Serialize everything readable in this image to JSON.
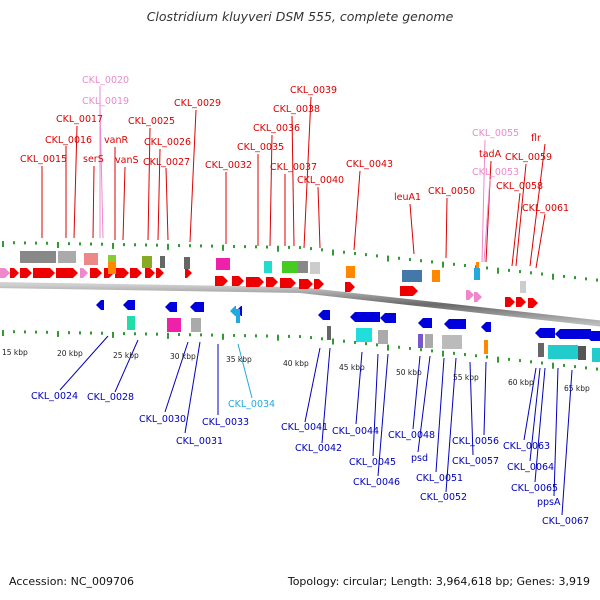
{
  "header": {
    "title": "Clostridium kluyveri DSM 555, complete genome"
  },
  "footer": {
    "accession": "Accession: NC_009706",
    "summary": "Topology: circular; Length: 3,964,618 bp; Genes: 3,919"
  },
  "colors": {
    "forward_label": "#dd0000",
    "reverse_label": "#0000bb",
    "rna_label_forward": "#ee88cc",
    "rna_label_reverse": "#22aadd",
    "forward_arrow": "#ee0000",
    "reverse_arrow": "#0000dd",
    "backbone": "#888888",
    "ticks": "#339933"
  },
  "scale_labels": [
    "15 kbp",
    "20 kbp",
    "25 kbp",
    "30 kbp",
    "35 kbp",
    "40 kbp",
    "45 kbp",
    "50 kbp",
    "55 kbp",
    "60 kbp",
    "65 kbp"
  ],
  "forward_labels": [
    "CKL_0020",
    "CKL_0019",
    "CKL_0017",
    "CKL_0016",
    "CKL_0015",
    "serS",
    "vanR",
    "vanS",
    "CKL_0025",
    "CKL_0026",
    "CKL_0027",
    "CKL_0029",
    "CKL_0032",
    "CKL_0035",
    "CKL_0036",
    "CKL_0037",
    "CKL_0038",
    "CKL_0039",
    "CKL_0040",
    "CKL_0043",
    "leuA1",
    "CKL_0050",
    "CKL_0055",
    "tadA",
    "CKL_0053",
    "flr",
    "CKL_0059",
    "CKL_0058",
    "CKL_0061"
  ],
  "reverse_labels": [
    "CKL_0024",
    "CKL_0028",
    "CKL_0030",
    "CKL_0031",
    "CKL_0033",
    "CKL_0034",
    "CKL_0041",
    "CKL_0042",
    "CKL_0044",
    "CKL_0045",
    "CKL_0046",
    "CKL_0048",
    "psd",
    "CKL_0051",
    "CKL_0052",
    "CKL_0056",
    "CKL_0057",
    "CKL_0063",
    "CKL_0064",
    "CKL_0065",
    "ppsA",
    "CKL_0067"
  ]
}
